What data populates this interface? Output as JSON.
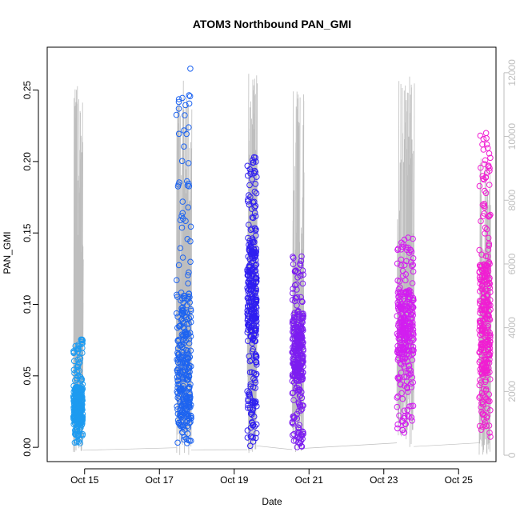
{
  "chart_data": {
    "type": "scatter",
    "title": "ATOM3 Northbound PAN_GMI",
    "xlabel": "Date",
    "ylabel": "PAN_GMI",
    "xlim": [
      "2019-10-14",
      "2019-10-26"
    ],
    "ylim": [
      -0.01,
      0.28
    ],
    "y2lim": [
      -200,
      12800
    ],
    "x_ticks": [
      "Oct 15",
      "Oct 17",
      "Oct 19",
      "Oct 21",
      "Oct 23",
      "Oct 25"
    ],
    "y_ticks": [
      "0.00",
      "0.05",
      "0.10",
      "0.15",
      "0.20",
      "0.25"
    ],
    "y2_ticks": [
      "0",
      "2000",
      "4000",
      "6000",
      "8000",
      "10000",
      "12000"
    ],
    "grid": false,
    "legend": "none",
    "marker": "open-circle",
    "altitude_line_color": "#bebebe",
    "series": [
      {
        "date": "2019-10-14",
        "color": "#1e9bf0",
        "t_start": 0.7,
        "t_end": 0.95,
        "y_min": 0.002,
        "y_max": 0.076,
        "y_mid": 0.03,
        "altitude_peak": 11600
      },
      {
        "date": "2019-10-17",
        "color": "#1e64f0",
        "t_start": 0.45,
        "t_end": 0.85,
        "y_min": 0.001,
        "y_max": 0.27,
        "y_mid": 0.06,
        "altitude_peak": 11800
      },
      {
        "date": "2019-10-19",
        "color": "#2f1ef0",
        "t_start": 0.35,
        "t_end": 0.6,
        "y_min": 0.001,
        "y_max": 0.205,
        "y_mid": 0.11,
        "altitude_peak": 12300
      },
      {
        "date": "2019-10-20",
        "color": "#7d1ef0",
        "t_start": 0.55,
        "t_end": 0.85,
        "y_min": 0.0,
        "y_max": 0.135,
        "y_mid": 0.07,
        "altitude_peak": 11500
      },
      {
        "date": "2019-10-23",
        "color": "#d21ef0",
        "t_start": 0.35,
        "t_end": 0.8,
        "y_min": 0.008,
        "y_max": 0.147,
        "y_mid": 0.085,
        "altitude_peak": 12000
      },
      {
        "date": "2019-10-25",
        "color": "#f01ed2",
        "t_start": 0.55,
        "t_end": 0.85,
        "y_min": 0.003,
        "y_max": 0.222,
        "y_mid": 0.09,
        "altitude_peak": 9400
      }
    ]
  }
}
